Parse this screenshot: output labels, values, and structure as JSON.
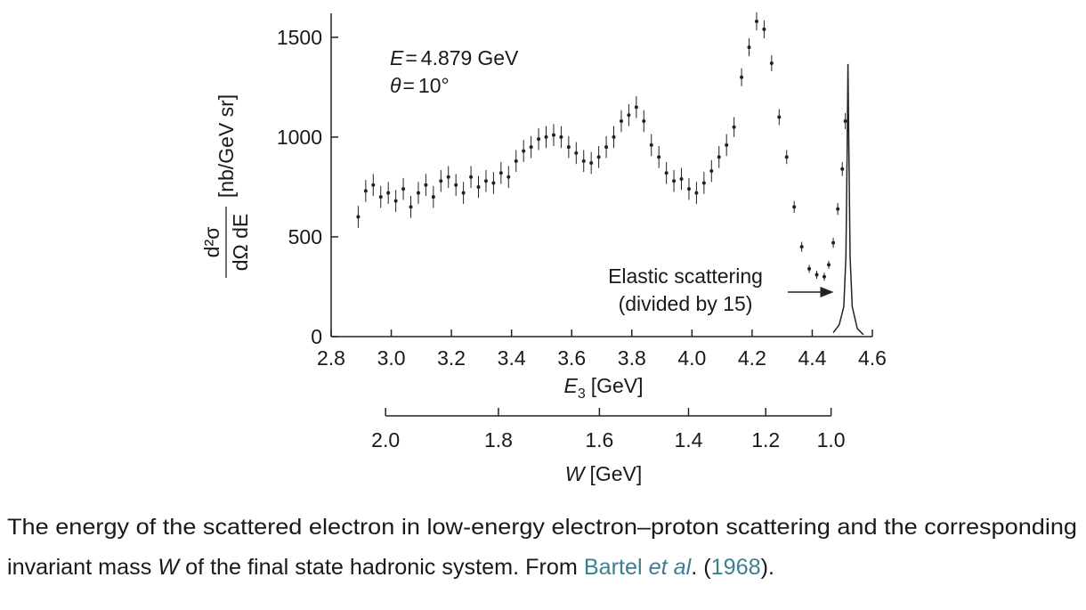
{
  "chart_data": {
    "type": "scatter",
    "xlabel": {
      "symbol": "E",
      "subscript": "3",
      "unit": "[GeV]"
    },
    "ylabel": {
      "numerator": "d²σ",
      "denominator": "dΩ dE",
      "unit": "[nb/GeV sr]"
    },
    "xlim": [
      2.8,
      4.6
    ],
    "xticks": [
      2.8,
      {
        "value": 3,
        "label": "3.0"
      },
      3.2,
      3.4,
      3.6,
      3.8,
      {
        "value": 4,
        "label": "4.0"
      },
      4.2,
      4.4,
      4.6
    ],
    "ylim": [
      0,
      1620
    ],
    "yticks": [
      0,
      500,
      1000,
      1500
    ],
    "x2label": {
      "symbol": "W",
      "unit": "[GeV]"
    },
    "x2ticks": [
      {
        "value": 2,
        "label": "2.0"
      },
      1.8,
      1.6,
      1.4,
      1.2,
      {
        "value": 1,
        "label": "1.0"
      }
    ],
    "annotations": [
      {
        "symbol": "E",
        "relation": "=",
        "value": 4.879,
        "unit": "GeV"
      },
      {
        "symbol": "θ",
        "relation": "=",
        "value": 10,
        "unit": "°"
      }
    ],
    "elastic_label": [
      "Elastic scattering",
      "(divided by 15)"
    ],
    "color": "#222222",
    "x": [
      2.89,
      2.915,
      2.94,
      2.965,
      2.99,
      3.015,
      3.04,
      3.065,
      3.09,
      3.115,
      3.14,
      3.165,
      3.19,
      3.215,
      3.24,
      3.265,
      3.29,
      3.315,
      3.34,
      3.365,
      3.39,
      3.415,
      3.44,
      3.465,
      3.49,
      3.515,
      3.54,
      3.565,
      3.59,
      3.615,
      3.64,
      3.665,
      3.69,
      3.715,
      3.74,
      3.765,
      3.79,
      3.815,
      3.84,
      3.865,
      3.89,
      3.915,
      3.94,
      3.965,
      3.99,
      4.015,
      4.04,
      4.065,
      4.09,
      4.115,
      4.14,
      4.165,
      4.19,
      4.215,
      4.24,
      4.265,
      4.29,
      4.315,
      4.34,
      4.365,
      4.39,
      4.415,
      4.44,
      4.455,
      4.47,
      4.485,
      4.5,
      4.51
    ],
    "values": [
      600,
      730,
      760,
      700,
      720,
      680,
      740,
      650,
      720,
      760,
      700,
      780,
      800,
      760,
      720,
      800,
      750,
      780,
      770,
      820,
      800,
      880,
      930,
      950,
      990,
      1000,
      1010,
      1000,
      950,
      920,
      880,
      870,
      900,
      950,
      1000,
      1080,
      1110,
      1150,
      1080,
      960,
      900,
      820,
      780,
      790,
      740,
      720,
      770,
      830,
      900,
      960,
      1050,
      1300,
      1450,
      1580,
      1540,
      1370,
      1100,
      900,
      650,
      450,
      340,
      310,
      300,
      360,
      470,
      640,
      840,
      1080
    ],
    "errors": [
      55,
      55,
      55,
      55,
      55,
      55,
      55,
      55,
      55,
      55,
      55,
      55,
      55,
      55,
      55,
      55,
      55,
      55,
      55,
      55,
      55,
      55,
      55,
      55,
      55,
      55,
      55,
      55,
      55,
      55,
      55,
      55,
      55,
      55,
      55,
      55,
      55,
      55,
      55,
      55,
      55,
      55,
      55,
      55,
      55,
      55,
      55,
      55,
      55,
      55,
      50,
      45,
      45,
      45,
      45,
      40,
      40,
      35,
      30,
      25,
      20,
      20,
      20,
      20,
      25,
      30,
      35,
      40
    ],
    "elastic": {
      "x": [
        4.47,
        4.49,
        4.505,
        4.512,
        4.516,
        4.519,
        4.522,
        4.526,
        4.533,
        4.55,
        4.57
      ],
      "values": [
        20,
        60,
        150,
        400,
        900,
        1366,
        900,
        400,
        150,
        40,
        10
      ]
    }
  },
  "caption": {
    "line1": "The energy of the scattered electron in low-energy electron–proton scattering and the corresponding",
    "line2": [
      {
        "text": "invariant mass "
      },
      {
        "text": "W",
        "italic": true
      },
      {
        "text": " of the final state hadronic system. From "
      },
      {
        "text": "Bartel ",
        "link": true
      },
      {
        "text": "et al",
        "link": true,
        "italic": true
      },
      {
        "text": ". ("
      },
      {
        "text": "1968",
        "link": true
      },
      {
        "text": ")."
      }
    ]
  }
}
